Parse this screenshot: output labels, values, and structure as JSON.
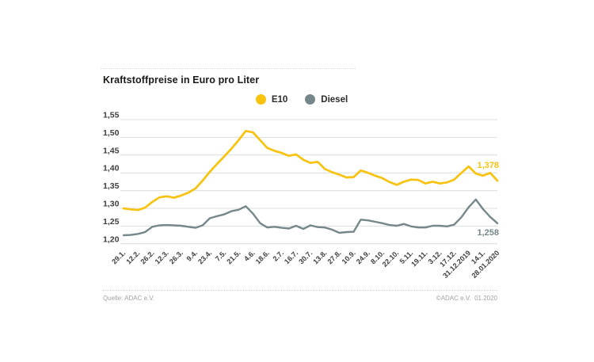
{
  "title": "Kraftstoffpreise in Euro pro Liter",
  "footer": {
    "source": "Quelle: ADAC e.V.",
    "copyright": "©ADAC e.V.  01.2020"
  },
  "colors": {
    "e10": "#F8C20E",
    "diesel": "#75878A",
    "grid": "#DCDEDE",
    "axis_text": "#3E3E3D"
  },
  "chart_data": {
    "type": "line",
    "title": "Kraftstoffpreise in Euro pro Liter",
    "ylabel": "Euro pro Liter",
    "ylim": [
      1.2,
      1.55
    ],
    "y_tick_step": 0.05,
    "y_tick_labels": [
      "1,55",
      "1,50",
      "1,45",
      "1,40",
      "1,35",
      "1,30",
      "1,25",
      "1,20"
    ],
    "grid": "horizontal",
    "legend_position": "top-center",
    "decimal_separator": ",",
    "x_tick_labels": [
      "29.1.",
      "12.2.",
      "26.2.",
      "12.3.",
      "26.3.",
      "9.4.",
      "23.4.",
      "7.5.",
      "21.5.",
      "4.6.",
      "18.6.",
      "2.7.",
      "16.7.",
      "30.7.",
      "13.8.",
      "27.8.",
      "10.9.",
      "24.9.",
      "8.10.",
      "22.10.",
      "5.11.",
      "19.11.",
      "3.12.",
      "17.12.",
      "31.12.2019",
      "14.1.",
      "28.01.2020"
    ],
    "x_labels_every_nth_point": 2,
    "series": [
      {
        "name": "E10",
        "color": "#F8C20E",
        "end_label": "1,378",
        "values": [
          1.3,
          1.297,
          1.295,
          1.302,
          1.318,
          1.331,
          1.334,
          1.33,
          1.336,
          1.344,
          1.356,
          1.378,
          1.403,
          1.425,
          1.446,
          1.468,
          1.492,
          1.518,
          1.514,
          1.492,
          1.47,
          1.462,
          1.456,
          1.448,
          1.452,
          1.437,
          1.428,
          1.431,
          1.411,
          1.402,
          1.395,
          1.387,
          1.388,
          1.407,
          1.4,
          1.392,
          1.385,
          1.374,
          1.366,
          1.375,
          1.381,
          1.38,
          1.37,
          1.375,
          1.37,
          1.373,
          1.381,
          1.4,
          1.418,
          1.398,
          1.392,
          1.4,
          1.378
        ]
      },
      {
        "name": "Diesel",
        "color": "#75878A",
        "end_label": "1,258",
        "values": [
          1.224,
          1.225,
          1.228,
          1.233,
          1.248,
          1.252,
          1.253,
          1.252,
          1.251,
          1.248,
          1.245,
          1.252,
          1.272,
          1.278,
          1.283,
          1.292,
          1.296,
          1.306,
          1.285,
          1.258,
          1.246,
          1.248,
          1.245,
          1.243,
          1.251,
          1.242,
          1.252,
          1.247,
          1.246,
          1.24,
          1.231,
          1.233,
          1.234,
          1.268,
          1.266,
          1.262,
          1.258,
          1.253,
          1.251,
          1.256,
          1.249,
          1.246,
          1.246,
          1.251,
          1.251,
          1.249,
          1.254,
          1.275,
          1.303,
          1.325,
          1.298,
          1.276,
          1.258
        ]
      }
    ]
  }
}
